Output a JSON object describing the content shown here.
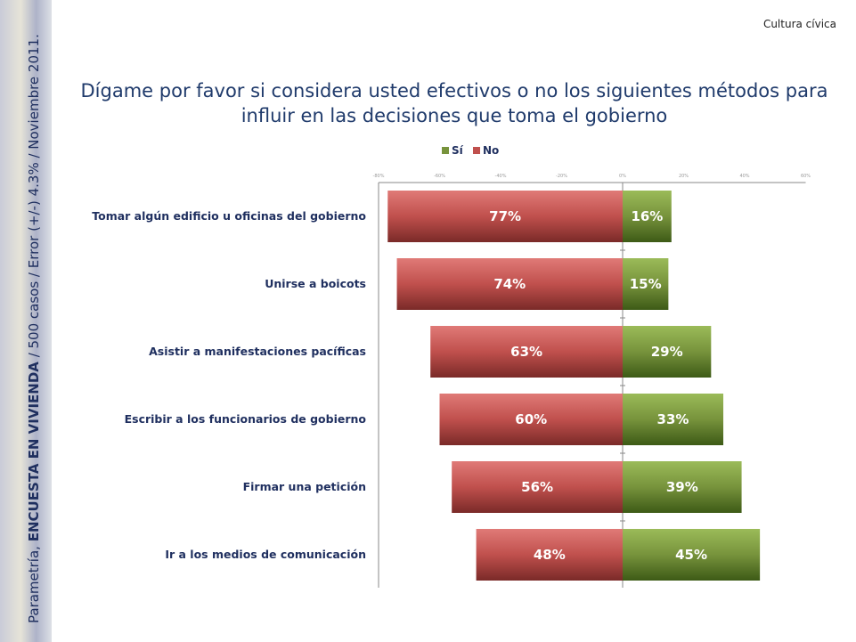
{
  "header": {
    "corner": "Cultura cívica",
    "side_prefix": "Parametría, ",
    "side_bold": "ENCUESTA EN VIVIENDA",
    "side_rest": " / 500 casos / Error (+/-) 4.3% / Noviembre 2011."
  },
  "chart_data": {
    "type": "bar",
    "orientation": "horizontal-diverging",
    "title": "Dígame por favor si considera usted efectivos o no los siguientes métodos para influir en las decisiones que toma el gobierno",
    "categories": [
      "Tomar algún edificio u oficinas del gobierno",
      "Unirse a boicots",
      "Asistir a manifestaciones pacíficas",
      "Escribir a los funcionarios de gobierno",
      "Firmar una petición",
      "Ir a los medios de comunicación"
    ],
    "series": [
      {
        "name": "Sí",
        "color": "#77933c",
        "values": [
          16,
          15,
          29,
          33,
          39,
          45
        ]
      },
      {
        "name": "No",
        "color": "#c0504d",
        "values": [
          77,
          74,
          63,
          60,
          56,
          48
        ]
      }
    ],
    "xticks": [
      "-80%",
      "-60%",
      "-40%",
      "-20%",
      "0%",
      "20%",
      "40%",
      "60%"
    ],
    "xlim": [
      -80,
      60
    ],
    "legend": "top"
  }
}
